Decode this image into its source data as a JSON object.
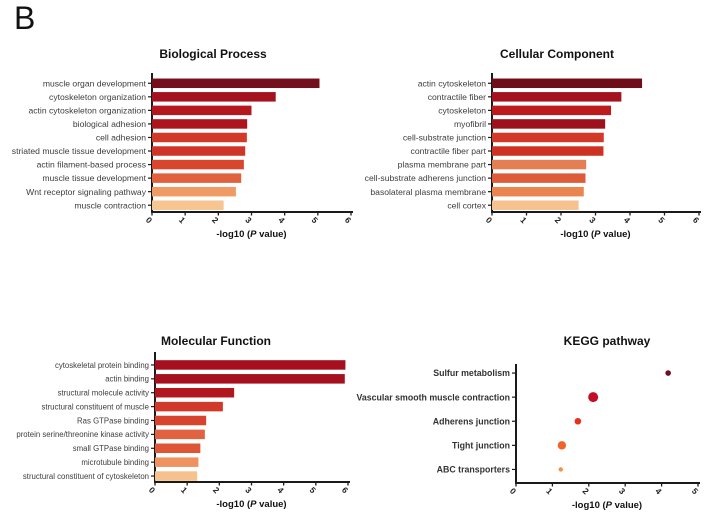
{
  "figure_label": "B",
  "axis_label": {
    "prefix": "-log10 (",
    "italic": "P",
    "suffix": " value)",
    "full": "-log10 (P value)"
  },
  "chart_data": [
    {
      "id": "biological-process",
      "type": "bar",
      "title": "Biological Process",
      "xlabel": "-log10 (P value)",
      "xlim": [
        0,
        6
      ],
      "xticks": [
        0,
        1,
        2,
        3,
        4,
        5,
        6
      ],
      "categories": [
        "muscle organ development",
        "cytoskeleton organization",
        "actin cytoskeleton organization",
        "biological adhesion",
        "cell adhesion",
        "striated muscle tissue development",
        "actin filament-based process",
        "muscle tissue development",
        "Wnt receptor signaling pathway",
        "muscle contraction"
      ],
      "values": [
        5.05,
        3.73,
        3.0,
        2.87,
        2.86,
        2.81,
        2.77,
        2.69,
        2.53,
        2.16
      ],
      "colors": [
        "#74101E",
        "#A5121F",
        "#B5171E",
        "#AE141D",
        "#D13A28",
        "#CF3526",
        "#D8462E",
        "#E0613D",
        "#F09A65",
        "#F7C592"
      ]
    },
    {
      "id": "cellular-component",
      "type": "bar",
      "title": "Cellular Component",
      "xlabel": "-log10 (P value)",
      "xlim": [
        0,
        6
      ],
      "xticks": [
        0,
        1,
        2,
        3,
        4,
        5,
        6
      ],
      "categories": [
        "actin cytoskeleton",
        "contractile fiber",
        "cytoskeleton",
        "myofibril",
        "cell-substrate junction",
        "contractile fiber part",
        "plasma membrane part",
        "cell-substrate adherens junction",
        "basolateral plasma membrane",
        "cell cortex"
      ],
      "values": [
        4.35,
        3.75,
        3.45,
        3.28,
        3.24,
        3.23,
        2.73,
        2.71,
        2.66,
        2.51
      ],
      "colors": [
        "#6E0E19",
        "#A5121F",
        "#BC1A1D",
        "#9E111C",
        "#D13A28",
        "#CC3122",
        "#E57E52",
        "#DE5B3A",
        "#EA854F",
        "#F6C290"
      ]
    },
    {
      "id": "molecular-function",
      "type": "bar",
      "title": "Molecular Function",
      "xlabel": "-log10 (P value)",
      "xlim": [
        0,
        6
      ],
      "xticks": [
        0,
        1,
        2,
        3,
        4,
        5,
        6
      ],
      "categories": [
        "cytoskeletal protein binding",
        "actin binding",
        "structural molecule activity",
        "structural constituent of muscle",
        "Ras GTPase binding",
        "protein serine/threonine kinase activity",
        "small GTPase binding",
        "microtubule binding",
        "structural constituent of cytoskeleton"
      ],
      "values": [
        5.92,
        5.9,
        2.46,
        2.11,
        1.59,
        1.55,
        1.41,
        1.35,
        1.31
      ],
      "colors": [
        "#A50F1E",
        "#A50F1E",
        "#B2161E",
        "#D13A28",
        "#D8432D",
        "#E06240",
        "#DD5737",
        "#EF9260",
        "#F6C18D"
      ]
    },
    {
      "id": "kegg-pathway",
      "type": "dot",
      "title": "KEGG pathway",
      "xlabel": "-log10 (P value)",
      "xlim": [
        0,
        5
      ],
      "xticks": [
        0,
        1,
        2,
        3,
        4,
        5
      ],
      "categories": [
        "Sulfur metabolism",
        "Vascular smooth muscle contraction",
        "Adherens junction",
        "Tight junction",
        "ABC transporters"
      ],
      "values": [
        4.18,
        2.12,
        1.7,
        1.26,
        1.23
      ],
      "dot_radii": [
        2.8,
        5.0,
        3.3,
        4.2,
        2.2
      ],
      "colors": [
        "#6E0E24",
        "#C30C26",
        "#E8311C",
        "#F2622B",
        "#F0944C"
      ]
    }
  ]
}
